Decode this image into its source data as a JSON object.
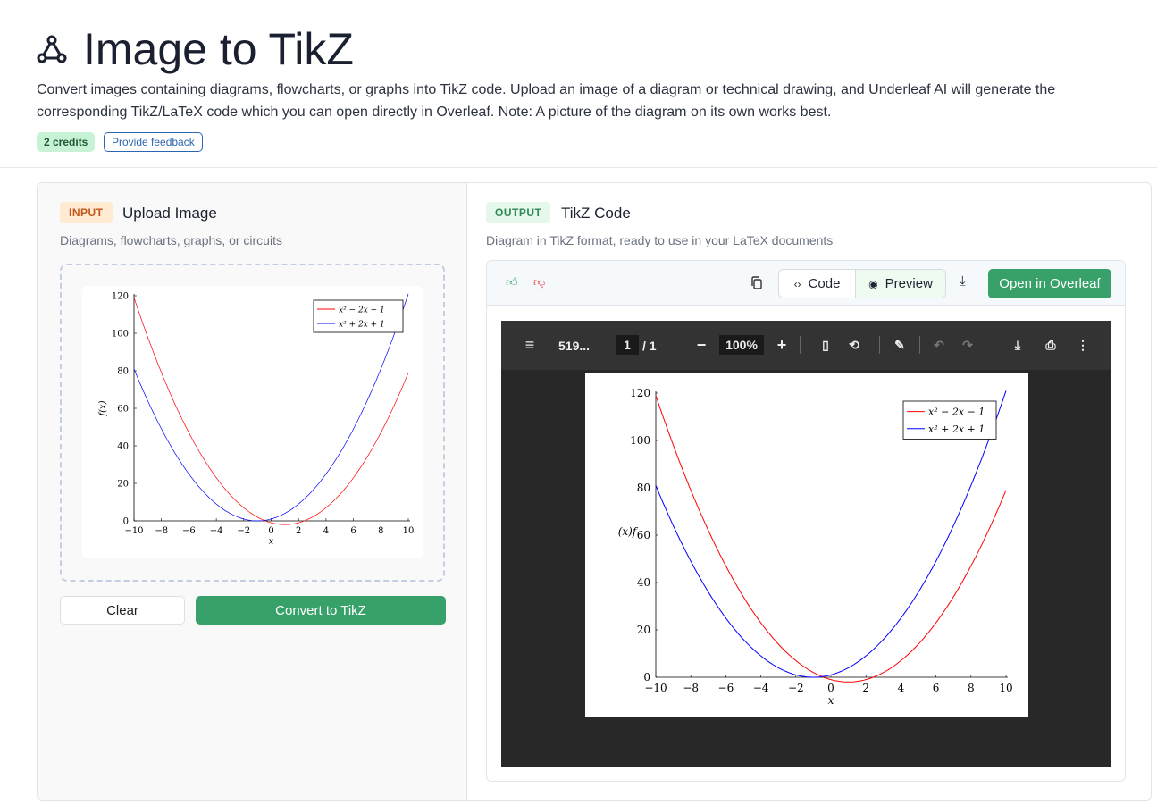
{
  "header": {
    "title": "Image to TikZ",
    "icon": "triangle-nodes-icon",
    "description": "Convert images containing diagrams, flowcharts, or graphs into TikZ code. Upload an image of a diagram or technical drawing, and Underleaf AI will generate the corresponding TikZ/LaTeX code which you can open directly in Overleaf. Note: A picture of the diagram on its own works best.",
    "credits": "2 credits",
    "feedback": "Provide feedback"
  },
  "input": {
    "tag": "INPUT",
    "title": "Upload Image",
    "subtitle": "Diagrams, flowcharts, graphs, or circuits",
    "clear": "Clear",
    "convert": "Convert to TikZ"
  },
  "output": {
    "tag": "OUTPUT",
    "title": "TikZ Code",
    "subtitle": "Diagram in TikZ format, ready to use in your LaTeX documents",
    "code": "Code",
    "preview": "Preview",
    "open": "Open in Overleaf",
    "active_view": "Preview"
  },
  "viewer": {
    "filename": "519...",
    "page": "1",
    "pages": "/ 1",
    "zoom": "100%"
  },
  "colors": {
    "accent": "#38a169",
    "red": "#ff0000",
    "blue": "#0000ff"
  },
  "chart_data": [
    {
      "type": "line",
      "xlabel": "x",
      "ylabel": "f(x)",
      "xlim": [
        -10,
        10
      ],
      "ylim": [
        0,
        120
      ],
      "xticks": [
        -10,
        -8,
        -6,
        -4,
        -2,
        0,
        2,
        4,
        6,
        8,
        10
      ],
      "yticks": [
        0,
        20,
        40,
        60,
        80,
        100,
        120
      ],
      "legend": "top-right",
      "series": [
        {
          "name": "x^2 - 2x - 1",
          "expr": "x^2-2x-1",
          "color": "#ff0000"
        },
        {
          "name": "x^2 + 2x + 1",
          "expr": "x^2+2x+1",
          "color": "#0000ff"
        }
      ]
    },
    {
      "type": "line",
      "xlabel": "x",
      "ylabel": "(x)f",
      "xlim": [
        -10,
        10
      ],
      "ylim": [
        0,
        120
      ],
      "xticks": [
        -10,
        -8,
        -6,
        -4,
        -2,
        0,
        2,
        4,
        6,
        8,
        10
      ],
      "yticks": [
        0,
        20,
        40,
        60,
        80,
        100,
        120
      ],
      "legend": "top-right",
      "series": [
        {
          "name": "x^2 - 2x - 1",
          "expr": "x^2-2x-1",
          "color": "#ff0000"
        },
        {
          "name": "x^2 + 2x + 1",
          "expr": "x^2+2x+1",
          "color": "#0000ff"
        }
      ]
    }
  ]
}
